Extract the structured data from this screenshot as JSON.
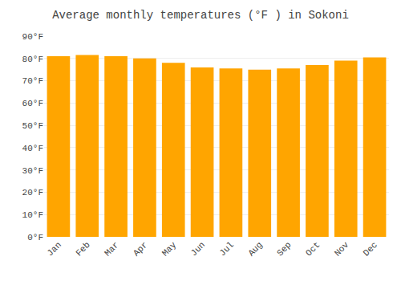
{
  "chart_data": {
    "type": "bar",
    "title": "Average monthly temperatures (°F ) in Sokoni",
    "categories": [
      "Jan",
      "Feb",
      "Mar",
      "Apr",
      "May",
      "Jun",
      "Jul",
      "Aug",
      "Sep",
      "Oct",
      "Nov",
      "Dec"
    ],
    "values": [
      81,
      81.5,
      81,
      80,
      78,
      76,
      75.5,
      75,
      75.5,
      77,
      79,
      80.5
    ],
    "color": "#FFA500",
    "ylim": [
      0,
      90
    ],
    "yticks": [
      {
        "value": 0,
        "label": "0°F"
      },
      {
        "value": 10,
        "label": "10°F"
      },
      {
        "value": 20,
        "label": "20°F"
      },
      {
        "value": 30,
        "label": "30°F"
      },
      {
        "value": 40,
        "label": "40°F"
      },
      {
        "value": 50,
        "label": "50°F"
      },
      {
        "value": 60,
        "label": "60°F"
      },
      {
        "value": 70,
        "label": "70°F"
      },
      {
        "value": 80,
        "label": "80°F"
      },
      {
        "value": 90,
        "label": "90°F"
      }
    ],
    "grid": true
  }
}
